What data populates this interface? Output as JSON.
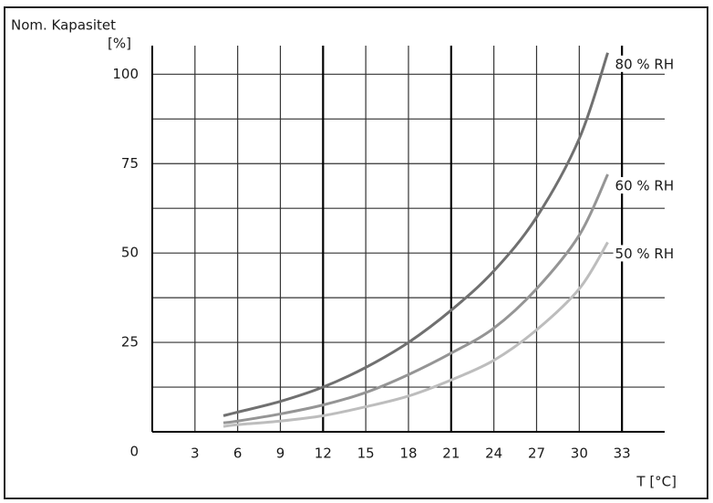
{
  "chart_data": {
    "type": "line",
    "ylabel": "Nom. Kapasitet",
    "yunit": "[%]",
    "xlabel": "T [°C]",
    "x": [
      5,
      6,
      9,
      12,
      15,
      18,
      21,
      24,
      27,
      30,
      32
    ],
    "series": [
      {
        "name": "80 % RH",
        "color": "#707070",
        "values": [
          4.5,
          5.5,
          8.5,
          12.5,
          18,
          25,
          34,
          45,
          60,
          82,
          106
        ]
      },
      {
        "name": "60 % RH",
        "color": "#959595",
        "values": [
          2.5,
          3,
          5,
          7.5,
          11,
          16,
          22,
          29,
          40,
          55,
          72
        ]
      },
      {
        "name": "50 % RH",
        "color": "#bdbdbd",
        "values": [
          1.5,
          2,
          3,
          4.5,
          7,
          10,
          14.5,
          20,
          28.5,
          40,
          53
        ]
      }
    ],
    "xlim": [
      0,
      36
    ],
    "ylim": [
      0,
      108
    ],
    "xticks": [
      3,
      6,
      9,
      12,
      15,
      18,
      21,
      24,
      27,
      30,
      33
    ],
    "yticks": [
      0,
      25,
      50,
      75,
      100
    ],
    "ygrid": [
      12.5,
      25,
      37.5,
      50,
      62.5,
      75,
      87.5,
      100
    ],
    "xgrid_major": [
      12,
      21,
      33
    ],
    "grid": true
  }
}
